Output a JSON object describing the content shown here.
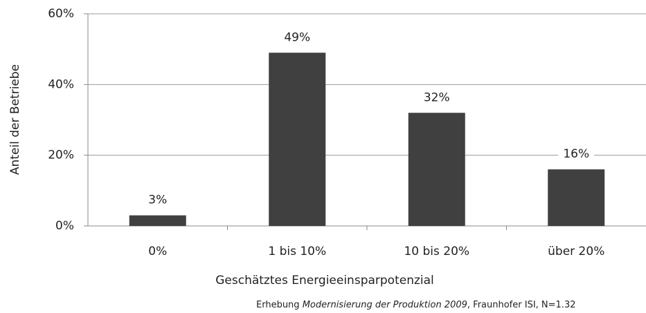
{
  "chart_data": {
    "type": "bar",
    "categories": [
      "0%",
      "1 bis 10%",
      "10  bis 20%",
      "über 20%"
    ],
    "values": [
      3,
      49,
      32,
      16
    ],
    "value_labels": [
      "3%",
      "49%",
      "32%",
      "16%"
    ],
    "color": "#404040",
    "ylim": [
      0,
      60
    ],
    "yticks": [
      {
        "value": 0,
        "label": "0%"
      },
      {
        "value": 20,
        "label": "20%"
      },
      {
        "value": 40,
        "label": "40%"
      },
      {
        "value": 60,
        "label": "60%"
      }
    ],
    "grid": true,
    "x_label": "Geschätztes Energieeinsparpotenzial",
    "y_label": "Anteil der Betriebe",
    "source": [
      "Erhebung ",
      "Modernisierung der Produktion 2009",
      ", Fraunhofer ISI, N=1.32"
    ]
  }
}
